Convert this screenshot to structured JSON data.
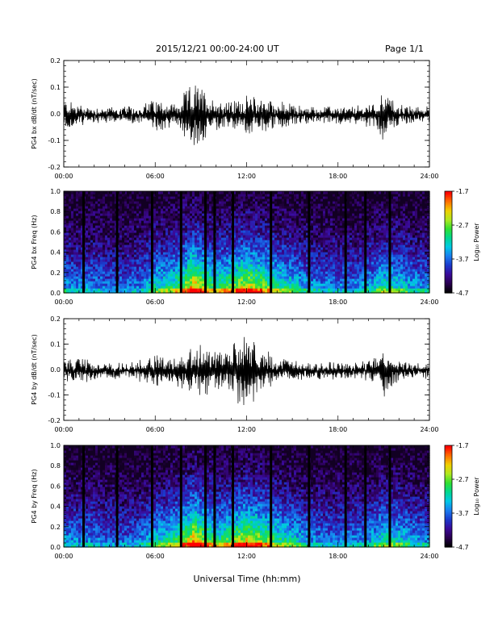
{
  "header": {
    "title": "2015/12/21  00:00-24:00 UT",
    "page": "Page 1/1"
  },
  "xlabel": "Universal Time (hh:mm)",
  "colors": {
    "colormap": [
      "#000000",
      "#2a0050",
      "#3a0a9a",
      "#1a3acc",
      "#1a7ef0",
      "#00c8e6",
      "#00d890",
      "#30e030",
      "#b0e820",
      "#f0d000",
      "#ff7000",
      "#ff0000"
    ],
    "trace": "#000000"
  },
  "chart_data": [
    {
      "type": "line",
      "title": "",
      "xlabel": "",
      "ylabel": "PG4 bx dB/dt (nT/sec)",
      "xlim": [
        0,
        24
      ],
      "ylim": [
        -0.2,
        0.2
      ],
      "x_ticks": [
        "00:00",
        "06:00",
        "12:00",
        "18:00",
        "24:00"
      ],
      "y_ticks": [
        "-0.2",
        "-0.1",
        "0.0",
        "0.1",
        "0.2"
      ],
      "y_tick_values": [
        -0.2,
        -0.1,
        0.0,
        0.1,
        0.2
      ],
      "envelope": {
        "x": [
          0,
          1,
          2,
          3,
          4,
          5,
          5.5,
          6,
          7,
          7.5,
          8,
          8.5,
          9,
          9.5,
          10,
          11,
          12,
          13,
          14,
          15,
          16,
          17,
          18,
          19,
          20,
          20.5,
          21,
          21.5,
          22,
          23,
          24
        ],
        "amplitude": [
          0.06,
          0.04,
          0.03,
          0.03,
          0.03,
          0.03,
          0.05,
          0.06,
          0.05,
          0.04,
          0.09,
          0.12,
          0.11,
          0.08,
          0.06,
          0.05,
          0.07,
          0.07,
          0.05,
          0.04,
          0.03,
          0.03,
          0.03,
          0.03,
          0.04,
          0.05,
          0.1,
          0.06,
          0.04,
          0.03,
          0.03
        ]
      }
    },
    {
      "type": "heatmap",
      "title": "",
      "xlabel": "",
      "ylabel": "PG4 bx Freq (Hz)",
      "xlim": [
        0,
        24
      ],
      "ylim": [
        0.0,
        1.0
      ],
      "x_ticks": [
        "00:00",
        "06:00",
        "12:00",
        "18:00",
        "24:00"
      ],
      "y_ticks": [
        "0.0",
        "0.2",
        "0.4",
        "0.6",
        "0.8",
        "1.0"
      ],
      "y_tick_values": [
        0.0,
        0.2,
        0.4,
        0.6,
        0.8,
        1.0
      ],
      "colorbar": {
        "label": "Log₁₀ Power",
        "ticks": [
          "-1.7",
          "-2.7",
          "-3.7",
          "-4.7"
        ],
        "tick_values": [
          -1.7,
          -2.7,
          -3.7,
          -4.7
        ],
        "range": [
          -4.7,
          -1.7
        ]
      },
      "data_gaps_hours": [
        1.3,
        3.5,
        5.8,
        7.7,
        9.3,
        9.9,
        11.1,
        13.6,
        16.1,
        18.5,
        19.8,
        21.4
      ],
      "activity": {
        "x": [
          0,
          1,
          2,
          3,
          4,
          5,
          6,
          7,
          8,
          8.5,
          9,
          10,
          11,
          12,
          13,
          14,
          15,
          16,
          17,
          18,
          19,
          20,
          21,
          22,
          23,
          24
        ],
        "level": [
          0.35,
          0.3,
          0.3,
          0.25,
          0.25,
          0.3,
          0.45,
          0.5,
          0.7,
          0.9,
          0.75,
          0.55,
          0.65,
          0.8,
          0.7,
          0.55,
          0.45,
          0.35,
          0.3,
          0.3,
          0.3,
          0.35,
          0.5,
          0.45,
          0.35,
          0.3
        ]
      }
    },
    {
      "type": "line",
      "title": "",
      "xlabel": "",
      "ylabel": "PG4 by dB/dt (nT/sec)",
      "xlim": [
        0,
        24
      ],
      "ylim": [
        -0.2,
        0.2
      ],
      "x_ticks": [
        "00:00",
        "06:00",
        "12:00",
        "18:00",
        "24:00"
      ],
      "y_ticks": [
        "-0.2",
        "-0.1",
        "0.0",
        "0.1",
        "0.2"
      ],
      "y_tick_values": [
        -0.2,
        -0.1,
        0.0,
        0.1,
        0.2
      ],
      "envelope": {
        "x": [
          0,
          1,
          2,
          3,
          4,
          5,
          6,
          7,
          8,
          8.5,
          9,
          10,
          11,
          11.5,
          12,
          13,
          14,
          15,
          16,
          17,
          18,
          19,
          20,
          21,
          21.5,
          22,
          23,
          24
        ],
        "amplitude": [
          0.04,
          0.05,
          0.03,
          0.03,
          0.03,
          0.04,
          0.06,
          0.05,
          0.08,
          0.1,
          0.11,
          0.07,
          0.09,
          0.14,
          0.15,
          0.09,
          0.05,
          0.04,
          0.03,
          0.03,
          0.03,
          0.03,
          0.04,
          0.1,
          0.06,
          0.04,
          0.03,
          0.03
        ]
      }
    },
    {
      "type": "heatmap",
      "title": "",
      "xlabel": "",
      "ylabel": "PG4 by Freq (Hz)",
      "xlim": [
        0,
        24
      ],
      "ylim": [
        0.0,
        1.0
      ],
      "x_ticks": [
        "00:00",
        "06:00",
        "12:00",
        "18:00",
        "24:00"
      ],
      "y_ticks": [
        "0.0",
        "0.2",
        "0.4",
        "0.6",
        "0.8",
        "1.0"
      ],
      "y_tick_values": [
        0.0,
        0.2,
        0.4,
        0.6,
        0.8,
        1.0
      ],
      "colorbar": {
        "label": "Log₁₀ Power",
        "ticks": [
          "-1.7",
          "-2.7",
          "-3.7",
          "-4.7"
        ],
        "tick_values": [
          -1.7,
          -2.7,
          -3.7,
          -4.7
        ],
        "range": [
          -4.7,
          -1.7
        ]
      },
      "data_gaps_hours": [
        1.3,
        3.5,
        5.8,
        7.7,
        9.3,
        9.9,
        11.1,
        13.6,
        16.1,
        18.5,
        19.8,
        21.4
      ],
      "activity": {
        "x": [
          0,
          1,
          2,
          3,
          4,
          5,
          6,
          7,
          8,
          8.5,
          9,
          10,
          11,
          12,
          13,
          14,
          15,
          16,
          17,
          18,
          19,
          20,
          21,
          22,
          23,
          24
        ],
        "level": [
          0.35,
          0.3,
          0.3,
          0.25,
          0.25,
          0.3,
          0.45,
          0.5,
          0.7,
          0.9,
          0.75,
          0.55,
          0.65,
          0.8,
          0.7,
          0.55,
          0.45,
          0.35,
          0.3,
          0.3,
          0.3,
          0.35,
          0.5,
          0.45,
          0.35,
          0.3
        ]
      }
    }
  ]
}
